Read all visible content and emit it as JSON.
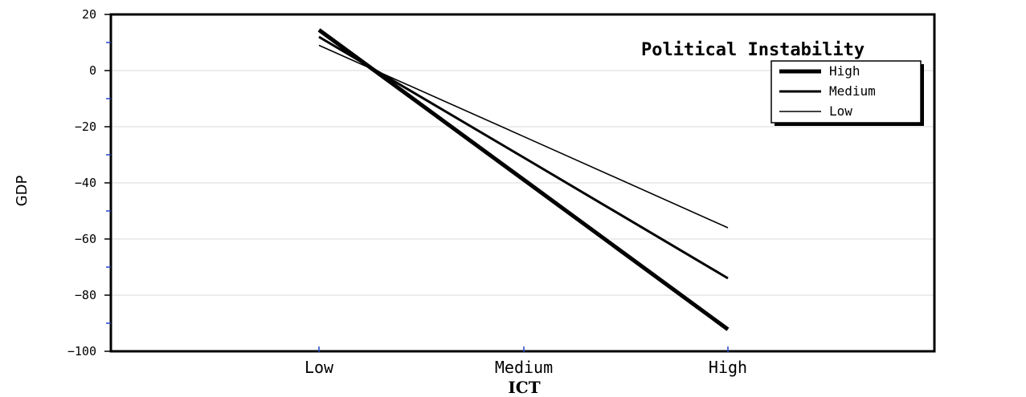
{
  "chart_data": {
    "type": "line",
    "xlabel": "ICT",
    "ylabel": "GDP",
    "categories": [
      "Low",
      "Medium",
      "High"
    ],
    "ylim": [
      -100,
      20
    ],
    "yticks": [
      20,
      0,
      -20,
      -40,
      -60,
      -80,
      -100
    ],
    "yticks_display": [
      "20",
      "0",
      "−20",
      "−40",
      "−60",
      "−80",
      "−100"
    ],
    "grid": true,
    "legend": {
      "title": "Political Instability",
      "placement": "top-right"
    },
    "series": [
      {
        "name": "High",
        "line_style": "thick",
        "values": [
          14.5,
          -38.9,
          -92.2
        ]
      },
      {
        "name": "Medium",
        "line_style": "medium",
        "values": [
          12,
          -31,
          -74
        ]
      },
      {
        "name": "Low",
        "line_style": "thin",
        "values": [
          9,
          -23.5,
          -56
        ]
      }
    ]
  }
}
